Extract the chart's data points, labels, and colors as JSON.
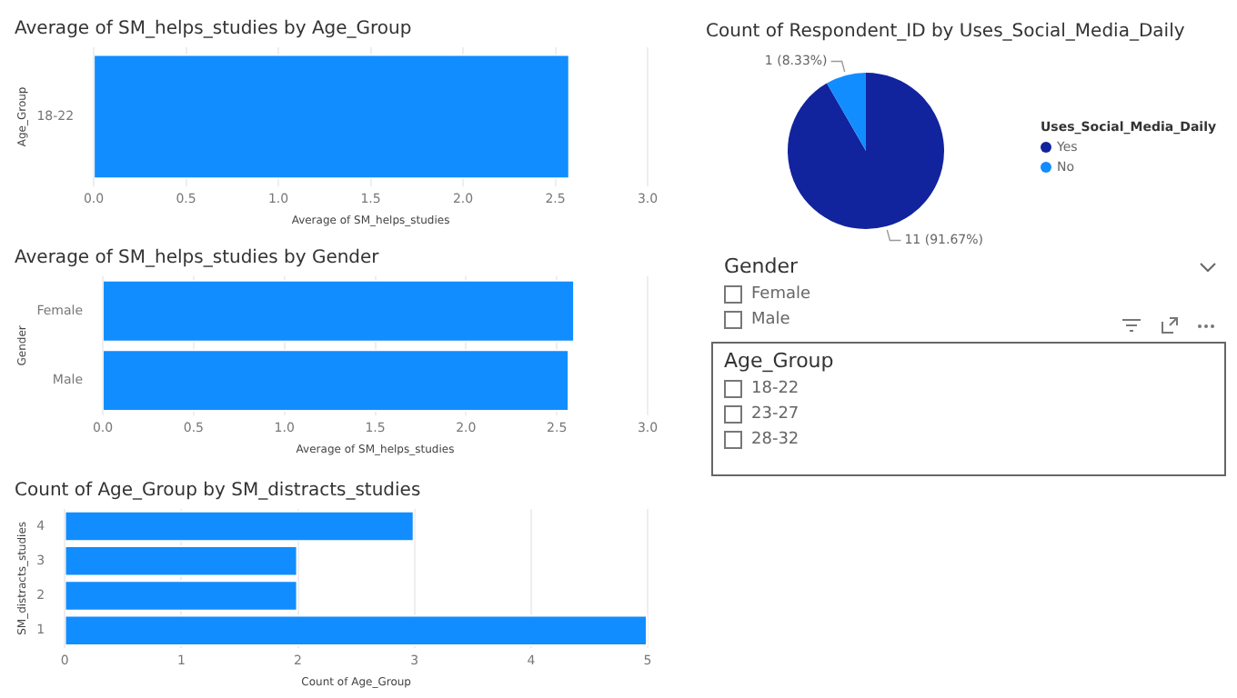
{
  "chart_data": [
    {
      "type": "bar",
      "orientation": "horizontal",
      "title": "Average of SM_helps_studies by Age_Group",
      "categories": [
        "18-22"
      ],
      "values": [
        2.58
      ],
      "color": "#118dff",
      "xlim": [
        0,
        3
      ],
      "xticks": [
        {
          "value": 0,
          "label": "0.0"
        },
        0.5,
        {
          "value": 1,
          "label": "1.0"
        },
        1.5,
        {
          "value": 2,
          "label": "2.0"
        },
        2.5,
        {
          "value": 3,
          "label": "3.0"
        }
      ],
      "xlabel": "Average of SM_helps_studies",
      "ylabel": "Age_Group",
      "grid": "x"
    },
    {
      "type": "bar",
      "orientation": "horizontal",
      "title": "Average of SM_helps_studies by Gender",
      "categories": [
        "Female",
        "Male"
      ],
      "values": [
        2.6,
        2.57
      ],
      "color": "#118dff",
      "xlim": [
        0,
        3
      ],
      "xticks": [
        {
          "value": 0,
          "label": "0.0"
        },
        0.5,
        {
          "value": 1,
          "label": "1.0"
        },
        1.5,
        {
          "value": 2,
          "label": "2.0"
        },
        2.5,
        {
          "value": 3,
          "label": "3.0"
        }
      ],
      "xlabel": "Average of SM_helps_studies",
      "ylabel": "Gender",
      "grid": "x"
    },
    {
      "type": "bar",
      "orientation": "horizontal",
      "title": "Count of Age_Group by SM_distracts_studies",
      "categories": [
        "4",
        "3",
        "2",
        "1"
      ],
      "values": [
        3,
        2,
        2,
        5
      ],
      "color": "#118dff",
      "xlim": [
        0,
        5
      ],
      "xticks": [
        0,
        1,
        2,
        3,
        4,
        5
      ],
      "xlabel": "Count of Age_Group",
      "ylabel": "SM_distracts_studies",
      "grid": "x"
    },
    {
      "type": "pie",
      "title": "Count of Respondent_ID by Uses_Social_Media_Daily",
      "categories": [
        "Yes",
        "No"
      ],
      "values": [
        11,
        1
      ],
      "colors": [
        "#12239e",
        "#118dff"
      ],
      "value_labels": [
        "11 (91.67%)",
        "1 (8.33%)"
      ],
      "legend": "right",
      "legend_title": "Uses_Social_Media_Daily"
    },
    {
      "type": "other",
      "title": "Gender",
      "annotations": [
        "Female",
        "Male"
      ]
    },
    {
      "type": "other",
      "title": "Age_Group",
      "annotations": [
        "18-22",
        "23-27",
        "28-32"
      ]
    }
  ]
}
